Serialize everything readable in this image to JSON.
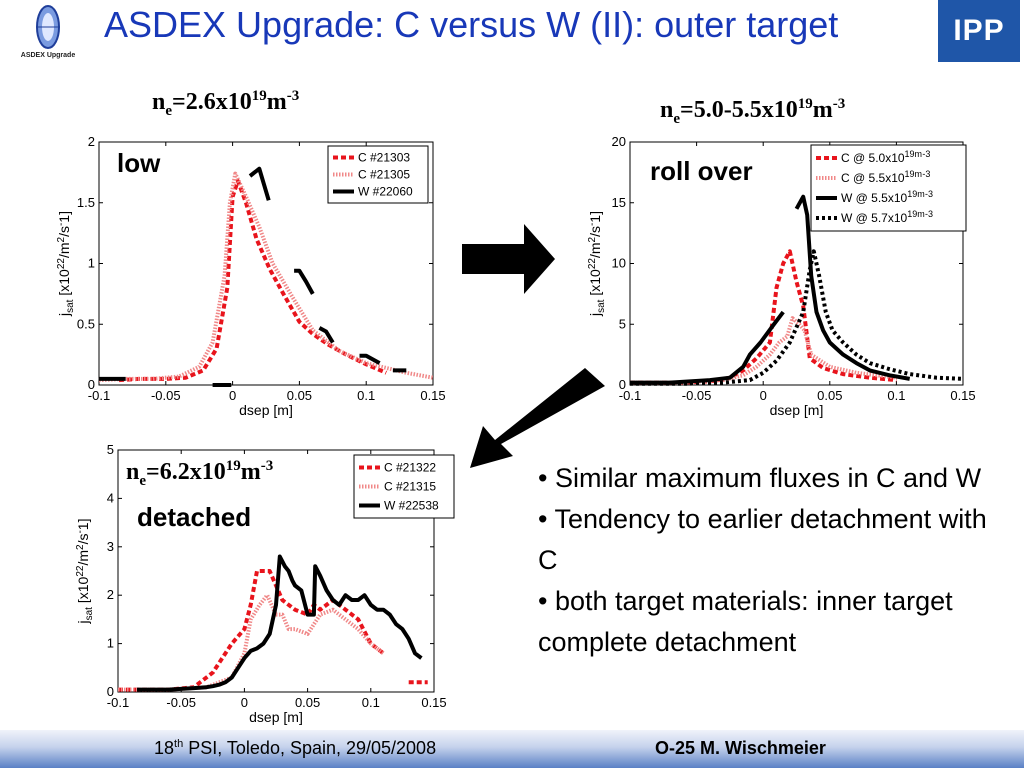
{
  "header": {
    "title": "ASDEX Upgrade: C versus W (II): outer target",
    "logo_left_text": "ASDEX Upgrade",
    "logo_right_text": "IPP"
  },
  "footer": {
    "left_pre": "18",
    "left_sup": "th",
    "left_post": " PSI, Toledo, Spain, 29/05/2008",
    "right": "O-25 M. Wischmeier"
  },
  "bullets": [
    "• Similar maximum fluxes in C and W",
    "• Tendency to earlier detachment with C",
    "• both target materials: inner target complete detachment"
  ],
  "panels": [
    {
      "ne_base": "n",
      "ne_sub": "e",
      "ne_mid": "=2.6x10",
      "ne_sup1": "19",
      "ne_unit": "m",
      "ne_sup2": "-3",
      "state": "low"
    },
    {
      "ne_base": "n",
      "ne_sub": "e",
      "ne_mid": "=5.0-5.5x10",
      "ne_sup1": "19",
      "ne_unit": "m",
      "ne_sup2": "-3",
      "state": "roll over"
    },
    {
      "ne_base": "n",
      "ne_sub": "e",
      "ne_mid": "=6.2x10",
      "ne_sup1": "19",
      "ne_unit": "m",
      "ne_sup2": "-3",
      "state": "detached"
    }
  ],
  "chart_data": [
    {
      "type": "line",
      "xlabel": "dsep [m]",
      "ylabel": "jsat [x10^22/m^2/s^-1]",
      "xlim": [
        -0.1,
        0.15
      ],
      "ylim": [
        0,
        2
      ],
      "xticks": [
        "-0.1",
        "-0.05",
        "0",
        "0.05",
        "0.1",
        "0.15"
      ],
      "yticks": [
        "0",
        "0.5",
        "1",
        "1.5",
        "2"
      ],
      "legend_position": "top-right",
      "series": [
        {
          "name": "C #21303",
          "color": "#e8141c",
          "style": "dashed",
          "x": [
            -0.085,
            -0.07,
            -0.05,
            -0.035,
            -0.022,
            -0.012,
            -0.004,
            0.0,
            0.004,
            0.01,
            0.018,
            0.028,
            0.038,
            0.05,
            0.06,
            0.072,
            0.085,
            0.1,
            0.115
          ],
          "y": [
            0.04,
            0.05,
            0.05,
            0.06,
            0.12,
            0.3,
            0.8,
            1.55,
            1.68,
            1.5,
            1.2,
            0.95,
            0.75,
            0.52,
            0.42,
            0.33,
            0.25,
            0.17,
            0.1
          ]
        },
        {
          "name": "C #21305",
          "color": "#f08888",
          "style": "dotted",
          "x": [
            -0.1,
            -0.08,
            -0.06,
            -0.04,
            -0.025,
            -0.015,
            -0.006,
            -0.002,
            0.002,
            0.01,
            0.02,
            0.03,
            0.045,
            0.06,
            0.08,
            0.1,
            0.13,
            0.15
          ],
          "y": [
            0.04,
            0.05,
            0.05,
            0.07,
            0.15,
            0.35,
            0.9,
            1.5,
            1.74,
            1.55,
            1.3,
            1.0,
            0.72,
            0.45,
            0.28,
            0.18,
            0.1,
            0.06
          ]
        },
        {
          "name": "W #22060",
          "color": "#000000",
          "style": "solid-broken",
          "x": [
            -0.1,
            -0.08,
            null,
            -0.015,
            -0.001,
            null,
            0.013,
            0.02,
            0.027,
            null,
            0.046,
            0.05,
            0.055,
            0.06,
            null,
            0.065,
            0.07,
            0.075,
            null,
            0.095,
            0.1,
            0.11,
            null,
            0.12,
            0.13
          ],
          "y": [
            0.05,
            0.05,
            null,
            0.0,
            0.0,
            null,
            1.72,
            1.78,
            1.52,
            null,
            0.94,
            0.94,
            0.85,
            0.75,
            null,
            0.47,
            0.44,
            0.35,
            null,
            0.24,
            0.24,
            0.18,
            null,
            0.12,
            0.12
          ]
        }
      ]
    },
    {
      "type": "line",
      "xlabel": "dsep [m]",
      "ylabel": "jsat [x10^22/m^2/s^-1]",
      "xlim": [
        -0.1,
        0.15
      ],
      "ylim": [
        0,
        20
      ],
      "xticks": [
        "-0.1",
        "-0.05",
        "0",
        "0.05",
        "0.1",
        "0.15"
      ],
      "yticks": [
        "0",
        "5",
        "10",
        "15",
        "20"
      ],
      "legend_position": "top-right",
      "series": [
        {
          "name": "C @ 5.0x10^19m^-3",
          "color": "#e8141c",
          "style": "dashed",
          "x": [
            -0.1,
            -0.06,
            -0.04,
            -0.025,
            -0.015,
            -0.005,
            0.005,
            0.01,
            0.015,
            0.02,
            0.025,
            0.03,
            0.035,
            0.045,
            0.06,
            0.08,
            0.1
          ],
          "y": [
            0.2,
            0.2,
            0.3,
            0.6,
            1.2,
            2.2,
            3.5,
            8.0,
            10.0,
            11.0,
            8.5,
            6.5,
            2.2,
            1.4,
            0.9,
            0.6,
            0.4
          ]
        },
        {
          "name": "C @ 5.5x10^19m^-3",
          "color": "#f08888",
          "style": "dotted",
          "x": [
            -0.1,
            -0.06,
            -0.03,
            -0.015,
            -0.005,
            0.005,
            0.012,
            0.018,
            0.022,
            0.027,
            0.031,
            0.036,
            0.05,
            0.07,
            0.1
          ],
          "y": [
            0.2,
            0.2,
            0.4,
            0.8,
            1.5,
            2.5,
            3.5,
            4.0,
            5.5,
            5.0,
            4.5,
            2.5,
            1.5,
            1.0,
            0.6
          ]
        },
        {
          "name": "W @ 5.5x10^19m^-3",
          "color": "#000000",
          "style": "solid-broken",
          "x": [
            -0.1,
            -0.07,
            -0.04,
            -0.025,
            -0.015,
            -0.01,
            -0.002,
            0.008,
            0.015,
            null,
            0.025,
            0.03,
            0.033,
            0.036,
            0.04,
            0.045,
            0.05,
            0.055,
            0.06,
            0.07,
            0.08,
            0.095,
            0.11
          ],
          "y": [
            0.2,
            0.2,
            0.4,
            0.6,
            1.5,
            2.5,
            3.5,
            5.0,
            6.0,
            null,
            14.5,
            15.5,
            14.0,
            9.0,
            6.0,
            4.5,
            3.5,
            3.0,
            2.5,
            1.8,
            1.2,
            0.8,
            0.5
          ]
        },
        {
          "name": "W @ 5.7x10^19m^-3",
          "color": "#000000",
          "style": "dotted-thick",
          "x": [
            -0.1,
            -0.06,
            -0.03,
            -0.01,
            0.0,
            0.01,
            0.02,
            0.03,
            0.035,
            0.038,
            0.042,
            0.047,
            0.052,
            0.06,
            0.07,
            0.08,
            0.095,
            0.11,
            0.13,
            0.15
          ],
          "y": [
            0.1,
            0.1,
            0.2,
            0.4,
            1.0,
            2.0,
            3.5,
            6.0,
            9.5,
            11.0,
            9.0,
            6.0,
            4.5,
            3.5,
            2.5,
            1.8,
            1.3,
            0.9,
            0.6,
            0.5
          ]
        }
      ]
    },
    {
      "type": "line",
      "xlabel": "dsep [m]",
      "ylabel": "jsat [x10^22/m^2/s^-1]",
      "xlim": [
        -0.1,
        0.15
      ],
      "ylim": [
        0,
        5
      ],
      "xticks": [
        "-0.1",
        "-0.05",
        "0",
        "0.05",
        "0.1",
        "0.15"
      ],
      "yticks": [
        "0",
        "1",
        "2",
        "3",
        "4",
        "5"
      ],
      "legend_position": "top-right",
      "series": [
        {
          "name": "C #21322",
          "color": "#e8141c",
          "style": "dashed",
          "x": [
            -0.1,
            -0.06,
            -0.04,
            -0.025,
            -0.01,
            0.0,
            0.005,
            0.01,
            0.02,
            0.025,
            0.03,
            0.04,
            0.05,
            0.055,
            0.06,
            0.07,
            0.08,
            0.09,
            0.1,
            0.11,
            null,
            0.13,
            0.145
          ],
          "y": [
            0.05,
            0.05,
            0.1,
            0.4,
            1.0,
            1.3,
            1.8,
            2.5,
            2.5,
            2.2,
            1.9,
            1.7,
            1.6,
            1.8,
            1.7,
            1.9,
            1.7,
            1.5,
            1.0,
            0.8,
            null,
            0.2,
            0.2
          ]
        },
        {
          "name": "C #21315",
          "color": "#f08888",
          "style": "dotted",
          "x": [
            -0.1,
            -0.06,
            -0.03,
            -0.01,
            0.0,
            0.005,
            0.012,
            0.018,
            0.025,
            0.03,
            0.035,
            0.04,
            0.05,
            0.06,
            0.07,
            0.08,
            0.09,
            0.1,
            0.11
          ],
          "y": [
            0.05,
            0.05,
            0.1,
            0.3,
            0.8,
            1.5,
            1.8,
            2.0,
            1.6,
            1.6,
            1.3,
            1.3,
            1.2,
            1.6,
            1.7,
            1.5,
            1.3,
            1.0,
            0.8
          ]
        },
        {
          "name": "W #22538",
          "color": "#000000",
          "style": "solid",
          "x": [
            -0.085,
            -0.06,
            -0.04,
            -0.03,
            -0.025,
            -0.02,
            -0.015,
            -0.01,
            -0.005,
            0.0,
            0.005,
            0.01,
            0.015,
            0.02,
            0.025,
            0.028,
            0.032,
            0.035,
            0.038,
            0.04,
            0.045,
            0.05,
            0.055,
            0.056,
            0.06,
            0.065,
            0.07,
            0.075,
            0.08,
            0.085,
            0.09,
            0.095,
            0.1,
            0.105,
            0.11,
            0.115,
            0.12,
            0.125,
            0.13,
            0.135,
            0.14
          ],
          "y": [
            0.05,
            0.05,
            0.08,
            0.1,
            0.12,
            0.15,
            0.2,
            0.3,
            0.5,
            0.7,
            0.85,
            0.9,
            1.0,
            1.2,
            1.8,
            2.8,
            2.6,
            2.5,
            2.3,
            2.2,
            2.1,
            1.6,
            1.6,
            2.6,
            2.4,
            2.1,
            1.9,
            1.8,
            2.0,
            1.9,
            1.9,
            2.0,
            1.8,
            1.7,
            1.7,
            1.6,
            1.4,
            1.3,
            1.1,
            0.8,
            0.7
          ]
        }
      ]
    }
  ]
}
